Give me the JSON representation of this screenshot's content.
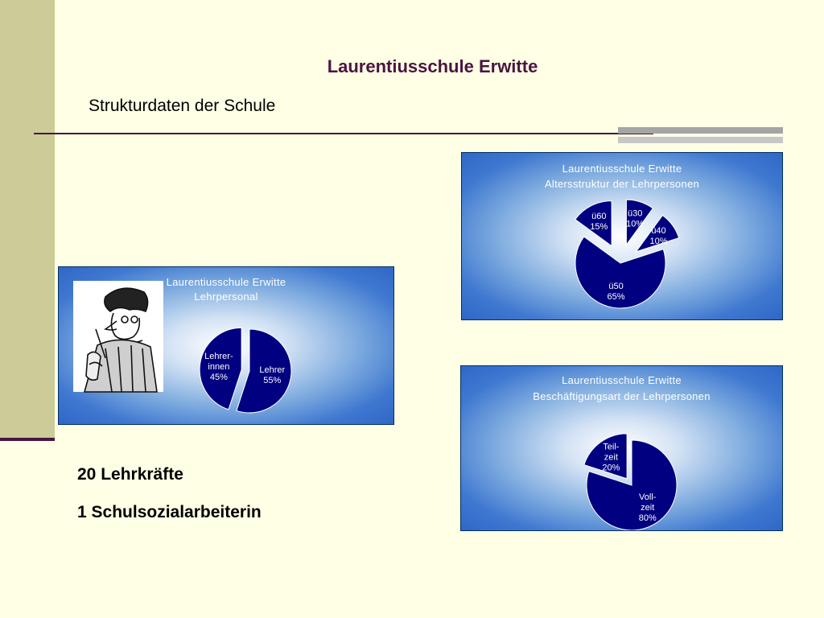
{
  "slide": {
    "title": "Laurentiusschule Erwitte",
    "subtitle": "Strukturdaten der Schule"
  },
  "colors": {
    "title": "#4a1440",
    "sidebar": "#cccc99",
    "background": "#ffffe5",
    "slice": "#000080",
    "panel_edge": "#2f67c8"
  },
  "stats": {
    "teachers": "20 Lehrkräfte",
    "social_worker": "1 Schulsozialarbeiterin"
  },
  "chart_data": [
    {
      "type": "pie",
      "title": "Laurentiusschule Erwitte",
      "subtitle": "Lehrpersonal",
      "slices": [
        {
          "label": "Lehrer-\ninnen\n45%",
          "value": 45,
          "exploded": true
        },
        {
          "label": "Lehrer\n55%",
          "value": 55,
          "exploded": false
        }
      ]
    },
    {
      "type": "pie",
      "title": "Laurentiusschule Erwitte",
      "subtitle": "Altersstruktur der Lehrpersonen",
      "slices": [
        {
          "label": "ü30\n10%",
          "value": 10,
          "exploded": true
        },
        {
          "label": "ü40\n10%",
          "value": 10,
          "exploded": true
        },
        {
          "label": "ü50\n65%",
          "value": 65,
          "exploded": false
        },
        {
          "label": "ü60\n15%",
          "value": 15,
          "exploded": true
        }
      ]
    },
    {
      "type": "pie",
      "title": "Laurentiusschule Erwitte",
      "subtitle": "Beschäftigungsart der Lehrpersonen",
      "slices": [
        {
          "label": "Voll-\nzeit\n80%",
          "value": 80,
          "exploded": false
        },
        {
          "label": "Teil-\nzeit\n20%",
          "value": 20,
          "exploded": true
        }
      ]
    }
  ]
}
